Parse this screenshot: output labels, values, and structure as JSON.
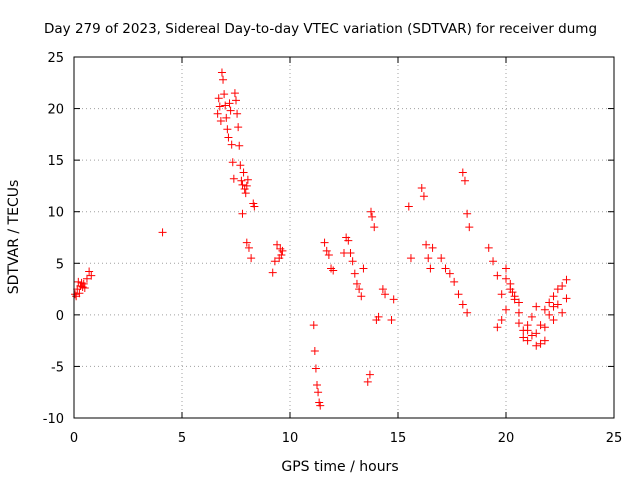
{
  "chart_data": {
    "type": "scatter",
    "title": "Day 279 of 2023, Sidereal Day-to-day VTEC variation (SDTVAR) for receiver dumg",
    "xlabel": "GPS time / hours",
    "ylabel": "SDTVAR / TECUs",
    "xlim": [
      0,
      25
    ],
    "ylim": [
      -10,
      25
    ],
    "xticks": [
      "0",
      "5",
      "10",
      "15",
      "20",
      "25"
    ],
    "yticks": [
      "-10",
      "-5",
      "0",
      "5",
      "10",
      "15",
      "20",
      "25"
    ],
    "grid": true,
    "marker": "+",
    "color": "#ff0000",
    "series": [
      {
        "name": "SDTVAR",
        "x": [
          0.05,
          0.1,
          0.15,
          0.2,
          0.25,
          0.3,
          0.35,
          0.4,
          0.45,
          0.5,
          0.6,
          0.7,
          0.8,
          4.1,
          6.65,
          6.7,
          6.75,
          6.8,
          6.85,
          6.9,
          6.95,
          7.0,
          7.05,
          7.1,
          7.15,
          7.2,
          7.25,
          7.3,
          7.35,
          7.4,
          7.45,
          7.5,
          7.55,
          7.6,
          7.65,
          7.7,
          7.75,
          7.8,
          7.85,
          7.9,
          7.95,
          8.0,
          8.05,
          7.8,
          8.0,
          8.1,
          8.2,
          8.3,
          8.35,
          9.2,
          9.3,
          9.4,
          9.5,
          9.55,
          9.6,
          9.65,
          11.1,
          11.15,
          11.2,
          11.25,
          11.3,
          11.35,
          11.4,
          11.6,
          11.7,
          11.8,
          11.9,
          12.0,
          12.5,
          12.6,
          12.7,
          12.8,
          12.9,
          13.0,
          13.1,
          13.2,
          13.3,
          13.4,
          13.6,
          13.7,
          13.75,
          13.8,
          13.9,
          14.0,
          14.1,
          14.3,
          14.4,
          14.7,
          14.8,
          15.5,
          15.6,
          16.1,
          16.2,
          16.3,
          16.4,
          16.5,
          16.6,
          17.0,
          17.2,
          17.4,
          17.6,
          17.8,
          18.0,
          18.2,
          18.0,
          18.1,
          18.2,
          18.3,
          19.2,
          19.4,
          19.6,
          19.8,
          20.0,
          20.2,
          20.4,
          20.6,
          20.8,
          21.0,
          21.2,
          21.4,
          21.6,
          21.8,
          22.0,
          22.2,
          22.4,
          22.6,
          22.8,
          19.6,
          19.8,
          20.0,
          20.2,
          20.4,
          20.6,
          20.8,
          21.0,
          21.2,
          21.4,
          21.6,
          21.8,
          22.0,
          22.2,
          22.4,
          22.6,
          22.8,
          20.0,
          20.3,
          20.6,
          21.0,
          21.4,
          21.8,
          22.2
        ],
        "y": [
          2.0,
          1.8,
          2.5,
          3.2,
          2.1,
          2.8,
          3.1,
          2.7,
          3.0,
          2.6,
          3.5,
          4.2,
          3.8,
          8.0,
          19.5,
          21.0,
          20.2,
          18.8,
          23.5,
          22.8,
          21.4,
          20.3,
          19.1,
          18.0,
          17.2,
          20.5,
          19.8,
          16.5,
          14.8,
          13.2,
          21.5,
          20.8,
          19.5,
          18.2,
          16.4,
          14.5,
          13.0,
          12.6,
          13.8,
          12.2,
          11.8,
          12.5,
          13.1,
          9.8,
          7.0,
          6.5,
          5.5,
          10.8,
          10.5,
          4.1,
          5.2,
          6.8,
          5.5,
          6.4,
          5.8,
          6.2,
          -1.0,
          -3.5,
          -5.2,
          -6.8,
          -7.5,
          -8.5,
          -8.8,
          7.0,
          6.2,
          5.8,
          4.5,
          4.3,
          6.0,
          7.5,
          7.2,
          6.0,
          5.2,
          4.0,
          3.0,
          2.5,
          1.8,
          4.5,
          -6.5,
          -5.8,
          10.0,
          9.5,
          8.5,
          -0.5,
          -0.2,
          2.5,
          2.0,
          -0.5,
          1.5,
          10.5,
          5.5,
          12.3,
          11.5,
          6.8,
          5.5,
          4.5,
          6.5,
          5.5,
          4.5,
          4.0,
          3.2,
          2.0,
          1.0,
          0.2,
          13.8,
          13.0,
          9.8,
          8.5,
          6.5,
          5.2,
          3.8,
          2.0,
          4.5,
          2.5,
          1.5,
          0.2,
          -1.5,
          -2.5,
          -2.0,
          -3.0,
          -1.0,
          0.5,
          1.2,
          1.8,
          2.5,
          2.8,
          3.4,
          -1.2,
          -0.5,
          0.5,
          3.0,
          1.8,
          -0.8,
          -2.2,
          -1.5,
          -0.2,
          0.8,
          -2.8,
          -1.2,
          0.0,
          -0.5,
          1.0,
          0.2,
          1.6,
          3.5,
          2.2,
          1.2,
          -1.0,
          -1.8,
          -2.5,
          0.8
        ]
      }
    ]
  }
}
